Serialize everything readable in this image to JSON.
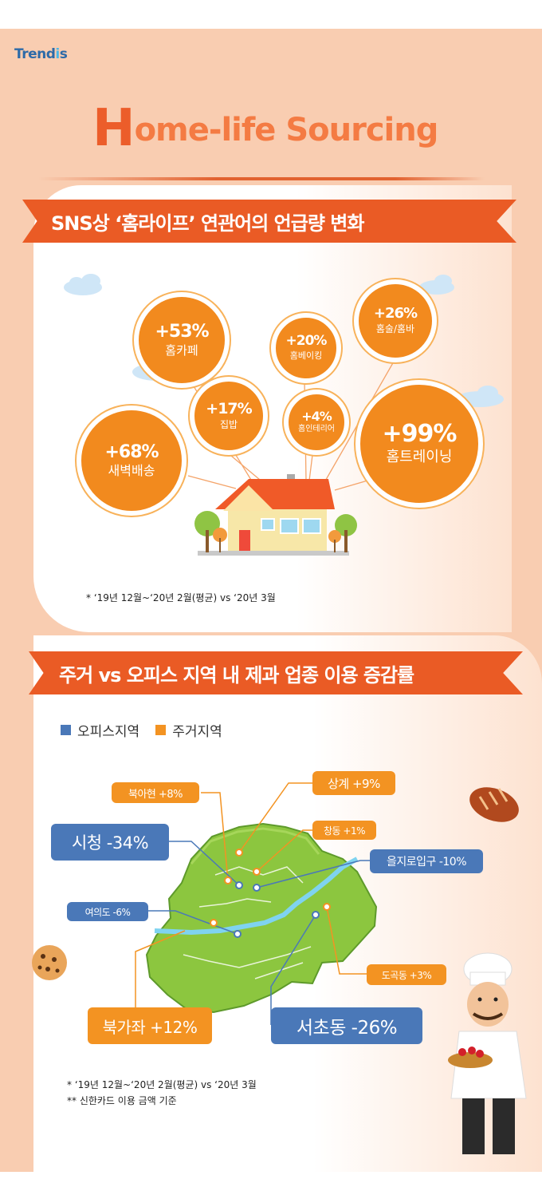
{
  "brand": {
    "logo_text": "Trendis",
    "logo_main": "Trend",
    "logo_dot": "i",
    "logo_tail": "s"
  },
  "header": {
    "title_initial": "H",
    "title_rest": "ome-life Sourcing"
  },
  "section1": {
    "title": "SNS상 ‘홈라이프’ 연관어의 언급량 변화",
    "bubbles": [
      {
        "pct": "+53%",
        "label": "홈카페"
      },
      {
        "pct": "+20%",
        "label": "홈베이킹"
      },
      {
        "pct": "+26%",
        "label": "홈술/홈바"
      },
      {
        "pct": "+17%",
        "label": "집밥"
      },
      {
        "pct": "+4%",
        "label": "홈인테리어"
      },
      {
        "pct": "+68%",
        "label": "새벽배송"
      },
      {
        "pct": "+99%",
        "label": "홈트레이닝"
      }
    ],
    "note": "* ‘19년 12월~‘20년 2월(평균) vs ‘20년 3월"
  },
  "section2": {
    "title": "주거 vs 오피스 지역 내 제과 업종 이용 증감률",
    "legend": [
      {
        "label": "오피스지역",
        "color": "#4a78b8"
      },
      {
        "label": "주거지역",
        "color": "#f39322"
      }
    ],
    "tags": [
      {
        "label": "북아현 +8%",
        "type": "residential"
      },
      {
        "label": "상계 +9%",
        "type": "residential"
      },
      {
        "label": "창동 +1%",
        "type": "residential"
      },
      {
        "label": "시청 -34%",
        "type": "office"
      },
      {
        "label": "을지로입구 -10%",
        "type": "office"
      },
      {
        "label": "여의도 -6%",
        "type": "office"
      },
      {
        "label": "도곡동 +3%",
        "type": "residential"
      },
      {
        "label": "북가좌 +12%",
        "type": "residential"
      },
      {
        "label": "서초동 -26%",
        "type": "office"
      }
    ],
    "notes": [
      "* ‘19년 12월~‘20년 2월(평균) vs ‘20년 3월",
      "** 신한카드 이용 금액 기준"
    ]
  },
  "colors": {
    "accent": "#ea5b25",
    "bubble": "#f28a1e",
    "office": "#4a78b8",
    "residential": "#f39322",
    "background": "#f9cdb1"
  }
}
